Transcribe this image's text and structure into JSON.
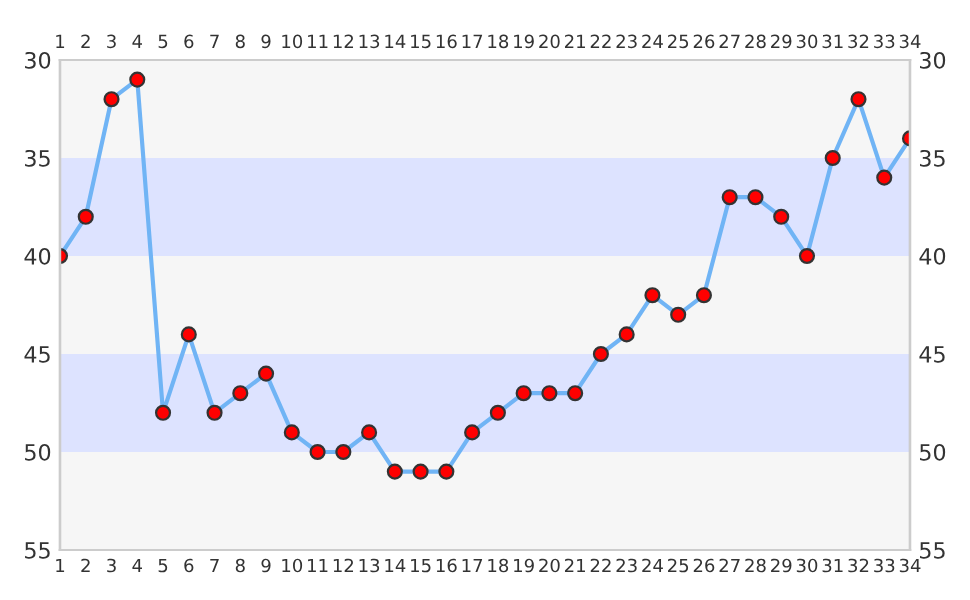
{
  "chart_data": {
    "type": "line",
    "x": [
      1,
      2,
      3,
      4,
      5,
      6,
      7,
      8,
      9,
      10,
      11,
      12,
      13,
      14,
      15,
      16,
      17,
      18,
      19,
      20,
      21,
      22,
      23,
      24,
      25,
      26,
      27,
      28,
      29,
      30,
      31,
      32,
      33,
      34
    ],
    "series": [
      {
        "color": "#70b4f5",
        "values": [
          40,
          38,
          32,
          31,
          48,
          44,
          48,
          47,
          46,
          49,
          50,
          50,
          49,
          51,
          51,
          51,
          49,
          48,
          47,
          47,
          47,
          45,
          44,
          42,
          43,
          42,
          37,
          37,
          38,
          40,
          35,
          32,
          36,
          34
        ]
      }
    ],
    "marker": "circle",
    "xlim": [
      1,
      34
    ],
    "xticks": [
      1,
      2,
      3,
      4,
      5,
      6,
      7,
      8,
      9,
      10,
      11,
      12,
      13,
      14,
      15,
      16,
      17,
      18,
      19,
      20,
      21,
      22,
      23,
      24,
      25,
      26,
      27,
      28,
      29,
      30,
      31,
      32,
      33,
      34
    ],
    "x2lim": [
      1,
      34
    ],
    "x2ticks": [
      1,
      2,
      3,
      4,
      5,
      6,
      7,
      8,
      9,
      10,
      11,
      12,
      13,
      14,
      15,
      16,
      17,
      18,
      19,
      20,
      21,
      22,
      23,
      24,
      25,
      26,
      27,
      28,
      29,
      30,
      31,
      32,
      33,
      34
    ],
    "ylim": [
      55,
      30
    ],
    "yticks": [
      30,
      35,
      40,
      45,
      50,
      55
    ],
    "y2lim": [
      55,
      30
    ],
    "y2ticks": [
      30,
      35,
      40,
      45,
      50,
      55
    ],
    "bands": [
      {
        "axis": "y",
        "from": 30,
        "to": 35,
        "color": "#f6f6f6"
      },
      {
        "axis": "y",
        "from": 35,
        "to": 40,
        "color": "#dde3ff"
      },
      {
        "axis": "y",
        "from": 40,
        "to": 45,
        "color": "#f6f6f6"
      },
      {
        "axis": "y",
        "from": 45,
        "to": 50,
        "color": "#dde3ff"
      },
      {
        "axis": "y",
        "from": 50,
        "to": 55,
        "color": "#f6f6f6"
      }
    ],
    "grid": false
  }
}
